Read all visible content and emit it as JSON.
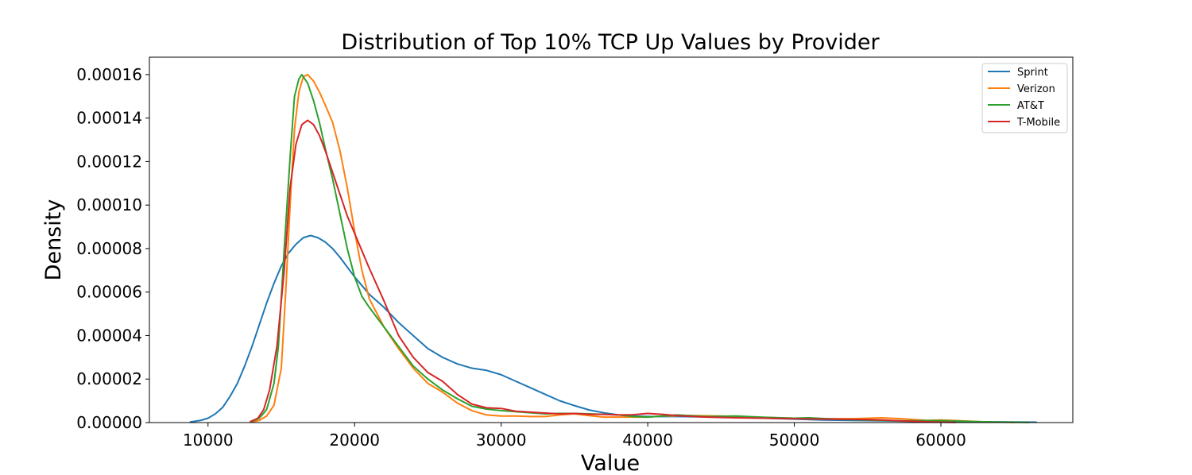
{
  "chart_data": {
    "type": "line",
    "title": "Distribution of Top 10% TCP Up Values by Provider",
    "xlabel": "Value",
    "ylabel": "Density",
    "xlim": [
      6000,
      69000
    ],
    "ylim": [
      0,
      0.000168
    ],
    "grid": false,
    "legend_position": "top-right",
    "x_ticks": [
      {
        "value": 10000,
        "label": "10000"
      },
      {
        "value": 20000,
        "label": "20000"
      },
      {
        "value": 30000,
        "label": "30000"
      },
      {
        "value": 40000,
        "label": "40000"
      },
      {
        "value": 50000,
        "label": "50000"
      },
      {
        "value": 60000,
        "label": "60000"
      }
    ],
    "y_ticks": [
      {
        "value": 0,
        "label": "0.00000"
      },
      {
        "value": 2e-05,
        "label": "0.00002"
      },
      {
        "value": 4e-05,
        "label": "0.00004"
      },
      {
        "value": 6e-05,
        "label": "0.00006"
      },
      {
        "value": 8e-05,
        "label": "0.00008"
      },
      {
        "value": 0.0001,
        "label": "0.00010"
      },
      {
        "value": 0.00012,
        "label": "0.00012"
      },
      {
        "value": 0.00014,
        "label": "0.00014"
      },
      {
        "value": 0.00016,
        "label": "0.00016"
      }
    ],
    "series": [
      {
        "name": "Sprint",
        "color": "#1f77b4",
        "points": [
          [
            8800,
            3e-07
          ],
          [
            9500,
            1e-06
          ],
          [
            10000,
            2e-06
          ],
          [
            10500,
            4e-06
          ],
          [
            11000,
            7e-06
          ],
          [
            11500,
            1.2e-05
          ],
          [
            12000,
            1.8e-05
          ],
          [
            12500,
            2.6e-05
          ],
          [
            13000,
            3.5e-05
          ],
          [
            13500,
            4.5e-05
          ],
          [
            14000,
            5.5e-05
          ],
          [
            14500,
            6.4e-05
          ],
          [
            15000,
            7.2e-05
          ],
          [
            15500,
            7.8e-05
          ],
          [
            16000,
            8.2e-05
          ],
          [
            16500,
            8.5e-05
          ],
          [
            17000,
            8.6e-05
          ],
          [
            17500,
            8.5e-05
          ],
          [
            18000,
            8.3e-05
          ],
          [
            18500,
            8e-05
          ],
          [
            19000,
            7.6e-05
          ],
          [
            20000,
            6.7e-05
          ],
          [
            21000,
            5.9e-05
          ],
          [
            22000,
            5.3e-05
          ],
          [
            23000,
            4.6e-05
          ],
          [
            24000,
            4e-05
          ],
          [
            25000,
            3.4e-05
          ],
          [
            26000,
            3e-05
          ],
          [
            27000,
            2.7e-05
          ],
          [
            28000,
            2.5e-05
          ],
          [
            29000,
            2.4e-05
          ],
          [
            30000,
            2.2e-05
          ],
          [
            31000,
            1.9e-05
          ],
          [
            32000,
            1.6e-05
          ],
          [
            33000,
            1.3e-05
          ],
          [
            34000,
            1e-05
          ],
          [
            35000,
            7.8e-06
          ],
          [
            36000,
            5.8e-06
          ],
          [
            37000,
            4.5e-06
          ],
          [
            38000,
            3.5e-06
          ],
          [
            39000,
            3e-06
          ],
          [
            40000,
            2.8e-06
          ],
          [
            42000,
            2.8e-06
          ],
          [
            44000,
            2.6e-06
          ],
          [
            46000,
            2.4e-06
          ],
          [
            48000,
            2e-06
          ],
          [
            50000,
            1.6e-06
          ],
          [
            52000,
            1.2e-06
          ],
          [
            54000,
            1e-06
          ],
          [
            56000,
            8e-07
          ],
          [
            58000,
            6e-07
          ],
          [
            60000,
            6e-07
          ],
          [
            62000,
            4e-07
          ],
          [
            64000,
            3e-07
          ],
          [
            66500,
            2e-07
          ]
        ]
      },
      {
        "name": "Verizon",
        "color": "#ff7f0e",
        "points": [
          [
            13000,
            3e-07
          ],
          [
            13500,
            1e-06
          ],
          [
            14000,
            3e-06
          ],
          [
            14500,
            8e-06
          ],
          [
            15000,
            2.5e-05
          ],
          [
            15300,
            6e-05
          ],
          [
            15600,
            0.0001
          ],
          [
            15900,
            0.000135
          ],
          [
            16200,
            0.000152
          ],
          [
            16500,
            0.000159
          ],
          [
            16800,
            0.00016
          ],
          [
            17200,
            0.000157
          ],
          [
            17600,
            0.000152
          ],
          [
            18000,
            0.000146
          ],
          [
            18500,
            0.000138
          ],
          [
            19000,
            0.000125
          ],
          [
            19500,
            0.000108
          ],
          [
            20000,
            8.8e-05
          ],
          [
            20500,
            7e-05
          ],
          [
            21000,
            5.7e-05
          ],
          [
            22000,
            4.4e-05
          ],
          [
            23000,
            3.4e-05
          ],
          [
            24000,
            2.5e-05
          ],
          [
            25000,
            1.8e-05
          ],
          [
            26000,
            1.4e-05
          ],
          [
            27000,
            9e-06
          ],
          [
            28000,
            5.5e-06
          ],
          [
            29000,
            3.5e-06
          ],
          [
            30000,
            3e-06
          ],
          [
            31000,
            3e-06
          ],
          [
            32000,
            2.8e-06
          ],
          [
            33000,
            2.8e-06
          ],
          [
            34000,
            3.5e-06
          ],
          [
            35000,
            4e-06
          ],
          [
            36000,
            3.2e-06
          ],
          [
            37000,
            2.5e-06
          ],
          [
            38000,
            2.5e-06
          ],
          [
            40000,
            2.5e-06
          ],
          [
            41000,
            3e-06
          ],
          [
            43000,
            3.2e-06
          ],
          [
            45000,
            3e-06
          ],
          [
            47000,
            2.5e-06
          ],
          [
            50000,
            2e-06
          ],
          [
            52000,
            1.8e-06
          ],
          [
            54000,
            1.8e-06
          ],
          [
            56000,
            2.2e-06
          ],
          [
            57500,
            1.7e-06
          ],
          [
            59000,
            1e-06
          ],
          [
            60000,
            1.2e-06
          ],
          [
            61000,
            9e-07
          ],
          [
            63000,
            3e-07
          ],
          [
            65000,
            1e-07
          ]
        ]
      },
      {
        "name": "AT&T",
        "color": "#2ca02c",
        "points": [
          [
            13000,
            5e-07
          ],
          [
            13500,
            2e-06
          ],
          [
            14000,
            6e-06
          ],
          [
            14500,
            1.8e-05
          ],
          [
            14800,
            3.5e-05
          ],
          [
            15200,
            8e-05
          ],
          [
            15600,
            0.000122
          ],
          [
            15900,
            0.00015
          ],
          [
            16200,
            0.000158
          ],
          [
            16400,
            0.00016
          ],
          [
            16800,
            0.000156
          ],
          [
            17200,
            0.000148
          ],
          [
            17600,
            0.000138
          ],
          [
            18000,
            0.000126
          ],
          [
            18500,
            0.000112
          ],
          [
            19000,
            9.6e-05
          ],
          [
            19500,
            8e-05
          ],
          [
            20000,
            6.7e-05
          ],
          [
            20500,
            5.8e-05
          ],
          [
            21000,
            5.3e-05
          ],
          [
            22000,
            4.4e-05
          ],
          [
            23000,
            3.5e-05
          ],
          [
            24000,
            2.6e-05
          ],
          [
            25000,
            2e-05
          ],
          [
            26000,
            1.5e-05
          ],
          [
            27000,
            1.1e-05
          ],
          [
            28000,
            7.5e-06
          ],
          [
            29000,
            6.2e-06
          ],
          [
            30000,
            5.5e-06
          ],
          [
            31000,
            5e-06
          ],
          [
            32000,
            4.5e-06
          ],
          [
            33000,
            4e-06
          ],
          [
            34000,
            4.2e-06
          ],
          [
            35000,
            4.2e-06
          ],
          [
            36000,
            4e-06
          ],
          [
            37000,
            3.8e-06
          ],
          [
            38000,
            3.5e-06
          ],
          [
            39000,
            2.8e-06
          ],
          [
            40000,
            2.5e-06
          ],
          [
            42000,
            3.5e-06
          ],
          [
            44000,
            2.8e-06
          ],
          [
            46000,
            3e-06
          ],
          [
            48000,
            2.4e-06
          ],
          [
            50000,
            2e-06
          ],
          [
            51000,
            2.2e-06
          ],
          [
            53000,
            1.5e-06
          ],
          [
            55000,
            1.2e-06
          ],
          [
            57000,
            8e-07
          ],
          [
            59000,
            9e-07
          ],
          [
            60000,
            9e-07
          ],
          [
            62000,
            5e-07
          ],
          [
            64000,
            2e-07
          ],
          [
            66000,
            1e-07
          ]
        ]
      },
      {
        "name": "T-Mobile",
        "color": "#d62728",
        "points": [
          [
            12900,
            5e-07
          ],
          [
            13400,
            2e-06
          ],
          [
            13800,
            6e-06
          ],
          [
            14200,
            1.5e-05
          ],
          [
            14700,
            3.5e-05
          ],
          [
            15200,
            7e-05
          ],
          [
            15600,
            0.000108
          ],
          [
            16000,
            0.000128
          ],
          [
            16400,
            0.000137
          ],
          [
            16800,
            0.000139
          ],
          [
            17200,
            0.000137
          ],
          [
            17600,
            0.000132
          ],
          [
            18000,
            0.000125
          ],
          [
            18500,
            0.000115
          ],
          [
            19000,
            0.000105
          ],
          [
            19500,
            9.5e-05
          ],
          [
            20000,
            8.7e-05
          ],
          [
            20500,
            7.9e-05
          ],
          [
            21000,
            7.1e-05
          ],
          [
            22000,
            5.6e-05
          ],
          [
            23000,
            4e-05
          ],
          [
            24000,
            3e-05
          ],
          [
            25000,
            2.3e-05
          ],
          [
            26000,
            1.9e-05
          ],
          [
            27000,
            1.3e-05
          ],
          [
            28000,
            8.5e-06
          ],
          [
            29000,
            6.8e-06
          ],
          [
            30000,
            6.5e-06
          ],
          [
            31000,
            5.2e-06
          ],
          [
            32000,
            4.8e-06
          ],
          [
            33000,
            4.4e-06
          ],
          [
            34000,
            4e-06
          ],
          [
            35000,
            4.2e-06
          ],
          [
            36000,
            3.8e-06
          ],
          [
            37000,
            3.8e-06
          ],
          [
            38000,
            3.5e-06
          ],
          [
            39000,
            3.6e-06
          ],
          [
            40000,
            4.2e-06
          ],
          [
            41000,
            3.8e-06
          ],
          [
            42000,
            3.2e-06
          ],
          [
            44000,
            2.5e-06
          ],
          [
            46000,
            2.2e-06
          ],
          [
            48000,
            2e-06
          ],
          [
            50000,
            1.8e-06
          ],
          [
            52000,
            1.6e-06
          ],
          [
            54000,
            1.5e-06
          ],
          [
            56000,
            1.2e-06
          ],
          [
            58000,
            6e-07
          ],
          [
            60000,
            2e-07
          ],
          [
            61000,
            1e-07
          ]
        ]
      }
    ]
  }
}
